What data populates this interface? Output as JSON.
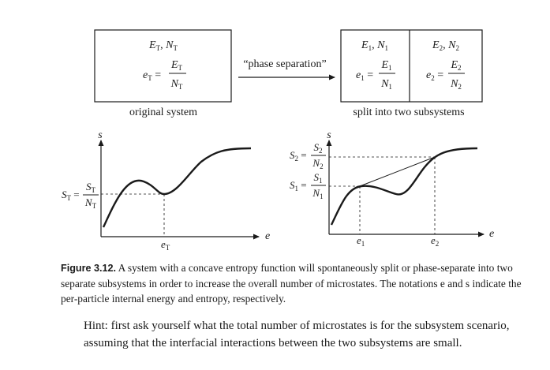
{
  "boxes": {
    "original": {
      "line1": "E_T, N_T",
      "energy_symbol": "e",
      "energy_sub": "T",
      "frac_num": "E",
      "frac_num_sub": "T",
      "frac_den": "N",
      "frac_den_sub": "T",
      "label": "original system"
    },
    "arrow_label": "“phase separation”",
    "split": {
      "left_line1": "E_1, N_1",
      "left_sub": "1",
      "right_line1": "E_2, N_2",
      "right_sub": "2",
      "label": "split into two subsystems"
    }
  },
  "plots": {
    "left": {
      "y_axis": "s",
      "x_axis": "e",
      "x_tick": "e",
      "x_tick_sub": "T",
      "y_tick_lhs": "S",
      "y_tick_sub": "T",
      "y_tick_num": "S",
      "y_tick_den": "N"
    },
    "right": {
      "y_axis": "s",
      "x_axis": "e",
      "x_tick1": "e",
      "x_tick1_sub": "1",
      "x_tick2": "e",
      "x_tick2_sub": "2",
      "y_tick_s1": "S",
      "y_tick_s1_sub": "1",
      "y_tick_s2": "S",
      "y_tick_s2_sub": "2",
      "y_den": "N"
    }
  },
  "caption": {
    "label": "Figure 3.12.",
    "text": "A system with a concave entropy function will spontaneously split or phase-separate into two separate subsystems in order to increase the overall number of microstates. The notations e and s indicate the per-particle internal energy and entropy, respectively."
  },
  "hint": "Hint: first ask yourself what the total number of microstates is for the subsystem scenario, assuming that the interfacial interactions between the two subsystems are small."
}
